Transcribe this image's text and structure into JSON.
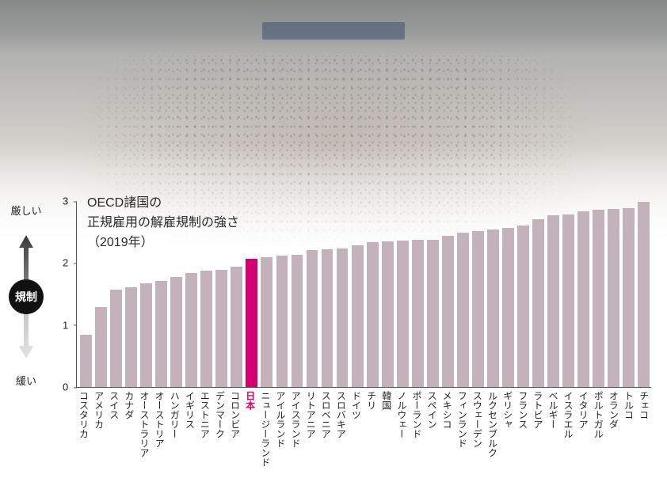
{
  "chart": {
    "type": "bar",
    "title_line1": "OECD諸国の",
    "title_line2": "正規雇用の解雇規制の強さ",
    "title_line3": "（2019年）",
    "title_fontsize": 16,
    "y": {
      "min": 0,
      "max": 3,
      "ticks": [
        0,
        1,
        2,
        3
      ],
      "tick_fontsize": 13
    },
    "bar_color": "#c4b2bb",
    "highlight_color": "#d5006f",
    "highlight_label_color": "#d5006f",
    "axis_color": "#555555",
    "background_color": "#ffffff",
    "bar_width_ratio": 0.78,
    "countries": [
      {
        "label": "コスタリカ",
        "value": 0.85
      },
      {
        "label": "アメリカ",
        "value": 1.3
      },
      {
        "label": "スイス",
        "value": 1.58
      },
      {
        "label": "カナダ",
        "value": 1.62
      },
      {
        "label": "オーストラリア",
        "value": 1.68
      },
      {
        "label": "オーストリア",
        "value": 1.72
      },
      {
        "label": "ハンガリー",
        "value": 1.78
      },
      {
        "label": "イギリス",
        "value": 1.85
      },
      {
        "label": "エストニア",
        "value": 1.88
      },
      {
        "label": "デンマーク",
        "value": 1.9
      },
      {
        "label": "コロンビア",
        "value": 1.95
      },
      {
        "label": "日本",
        "value": 2.08,
        "highlight": true
      },
      {
        "label": "ニュージーランド",
        "value": 2.1
      },
      {
        "label": "アイルランド",
        "value": 2.13
      },
      {
        "label": "アイスランド",
        "value": 2.14
      },
      {
        "label": "リトアニア",
        "value": 2.22
      },
      {
        "label": "スロベニア",
        "value": 2.23
      },
      {
        "label": "スロバキア",
        "value": 2.25
      },
      {
        "label": "ドイツ",
        "value": 2.3
      },
      {
        "label": "チリ",
        "value": 2.35
      },
      {
        "label": "韓国",
        "value": 2.36
      },
      {
        "label": "ノルウェー",
        "value": 2.37
      },
      {
        "label": "ポーランド",
        "value": 2.38
      },
      {
        "label": "スペイン",
        "value": 2.39
      },
      {
        "label": "メキシコ",
        "value": 2.45
      },
      {
        "label": "フィンランド",
        "value": 2.5
      },
      {
        "label": "スウェーデン",
        "value": 2.53
      },
      {
        "label": "ルクセンブルク",
        "value": 2.55
      },
      {
        "label": "ギリシャ",
        "value": 2.58
      },
      {
        "label": "フランス",
        "value": 2.62
      },
      {
        "label": "ラトビア",
        "value": 2.72
      },
      {
        "label": "ベルギー",
        "value": 2.78
      },
      {
        "label": "イスラエル",
        "value": 2.8
      },
      {
        "label": "イタリア",
        "value": 2.85
      },
      {
        "label": "ポルトガル",
        "value": 2.87
      },
      {
        "label": "オランダ",
        "value": 2.88
      },
      {
        "label": "トルコ",
        "value": 2.9
      },
      {
        "label": "チェコ",
        "value": 3.0
      }
    ]
  },
  "axis_annotation": {
    "top_label": "厳しい",
    "badge_label": "規制",
    "bottom_label": "緩い",
    "arrow_color_top": "#3a3a3a",
    "arrow_color_bottom": "#c9c9c9",
    "badge_bg": "#111111",
    "badge_fg": "#ffffff"
  }
}
